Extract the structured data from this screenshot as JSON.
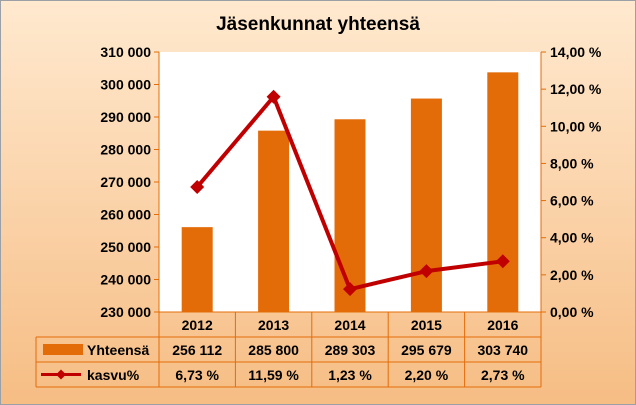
{
  "chart_data": {
    "type": "bar",
    "title": "Jäsenkunnat yhteensä",
    "categories": [
      "2012",
      "2013",
      "2014",
      "2015",
      "2016"
    ],
    "series": [
      {
        "name": "Yhteensä",
        "type": "bar",
        "axis": "left",
        "values": [
          256112,
          285800,
          289303,
          295679,
          303740
        ],
        "labels": [
          "256 112",
          "285 800",
          "289 303",
          "295 679",
          "303 740"
        ],
        "color": "#e36c09"
      },
      {
        "name": "kasvu%",
        "type": "line",
        "axis": "right",
        "values": [
          6.73,
          11.59,
          1.23,
          2.2,
          2.73
        ],
        "labels": [
          "6,73 %",
          "11,59 %",
          "1,23 %",
          "2,20 %",
          "2,73 %"
        ],
        "color": "#c00000"
      }
    ],
    "y_left": {
      "ylim": [
        230000,
        310000
      ],
      "ticks": [
        230000,
        240000,
        250000,
        260000,
        270000,
        280000,
        290000,
        300000,
        310000
      ],
      "tick_labels": [
        "230 000",
        "240 000",
        "250 000",
        "260 000",
        "270 000",
        "280 000",
        "290 000",
        "300 000",
        "310 000"
      ]
    },
    "y_right": {
      "ylim": [
        0,
        14
      ],
      "ticks": [
        0,
        2,
        4,
        6,
        8,
        10,
        12,
        14
      ],
      "tick_labels": [
        "0,00 %",
        "2,00 %",
        "4,00 %",
        "6,00 %",
        "8,00 %",
        "10,00 %",
        "12,00 %",
        "14,00 %"
      ]
    },
    "grid": false,
    "legend": "data-table"
  },
  "colors": {
    "axis": "#e36c09",
    "background_top": "#ffe9cf",
    "background_bottom": "#f6bd84",
    "plot_background": "#ffffff"
  }
}
